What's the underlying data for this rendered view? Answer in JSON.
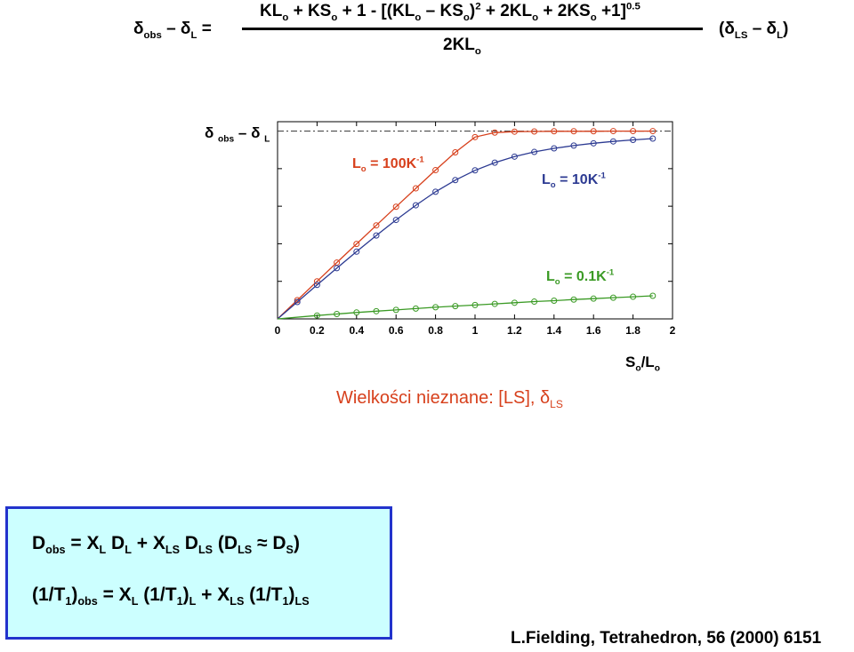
{
  "equation": {
    "lhs": [
      "δ",
      "obs",
      " – δ",
      "L",
      " ="
    ],
    "numerator": [
      "KL",
      "o",
      " + KS",
      "o",
      " + 1 - [(KL",
      "o",
      " – KS",
      "o",
      ")",
      "2",
      " + 2KL",
      "o",
      " + 2KS",
      "o",
      " +1]",
      "0.5"
    ],
    "denominator": [
      "2KL",
      "o"
    ],
    "rhs": [
      "(δ",
      "LS",
      " – δ",
      "L",
      ")"
    ]
  },
  "chart_data": {
    "type": "line",
    "ylabel": [
      "δ ",
      "obs",
      " – δ ",
      "L"
    ],
    "xlabel": [
      "S",
      "o",
      "/L",
      "o"
    ],
    "xlim": [
      0,
      2
    ],
    "ylim": [
      0,
      1.05
    ],
    "x_ticks": [
      "0",
      "0.2",
      "0.4",
      "0.6",
      "0.8",
      "1",
      "1.2",
      "1.4",
      "1.6",
      "1.8",
      "2"
    ],
    "asymptote": 1.0,
    "series": [
      {
        "name": [
          "L",
          "o",
          " = 100K",
          "-1"
        ],
        "color": "#d7401c",
        "x": [
          0.1,
          0.2,
          0.3,
          0.4,
          0.5,
          0.6,
          0.7,
          0.8,
          0.9,
          1.0,
          1.1,
          1.2,
          1.3,
          1.4,
          1.5,
          1.6,
          1.7,
          1.8,
          1.9
        ],
        "y": [
          0.1,
          0.2,
          0.3,
          0.399,
          0.498,
          0.597,
          0.695,
          0.792,
          0.887,
          0.968,
          0.992,
          0.997,
          0.998,
          0.999,
          0.999,
          0.999,
          1.0,
          1.0,
          1.0
        ]
      },
      {
        "name": [
          "L",
          "o",
          " = 10K",
          "-1"
        ],
        "color": "#2c3a92",
        "x": [
          0.1,
          0.2,
          0.3,
          0.4,
          0.5,
          0.6,
          0.7,
          0.8,
          0.9,
          1.0,
          1.1,
          1.2,
          1.3,
          1.4,
          1.5,
          1.6,
          1.7,
          1.8,
          1.9
        ],
        "y": [
          0.09,
          0.181,
          0.27,
          0.358,
          0.444,
          0.527,
          0.605,
          0.677,
          0.739,
          0.791,
          0.832,
          0.864,
          0.889,
          0.908,
          0.923,
          0.935,
          0.945,
          0.953,
          0.96
        ]
      },
      {
        "name": [
          "L",
          "o",
          " = 0.1K",
          "-1"
        ],
        "color": "#3a9a24",
        "x": [
          0.2,
          0.3,
          0.4,
          0.5,
          0.6,
          0.7,
          0.8,
          0.9,
          1.0,
          1.1,
          1.2,
          1.3,
          1.4,
          1.5,
          1.6,
          1.7,
          1.8,
          1.9
        ],
        "y": [
          0.018,
          0.026,
          0.034,
          0.041,
          0.048,
          0.055,
          0.062,
          0.068,
          0.074,
          0.08,
          0.086,
          0.092,
          0.097,
          0.103,
          0.108,
          0.113,
          0.118,
          0.123
        ]
      }
    ]
  },
  "unknowns_text": [
    "Wielkości nieznane: [LS], δ",
    "LS"
  ],
  "box": {
    "line1": [
      "D",
      "obs",
      " = X",
      "L",
      " D",
      "L",
      " + X",
      "LS",
      " D",
      "LS",
      "  (D",
      "LS",
      " ≈ D",
      "S",
      ")"
    ],
    "line2": [
      "(1/T",
      "1",
      ")",
      "obs",
      " = X",
      "L",
      " (1/T",
      "1",
      ")",
      "L",
      " + X",
      "LS",
      " (1/T",
      "1",
      ")",
      "LS"
    ]
  },
  "citation": "L.Fielding, Tetrahedron, 56 (2000) 6151"
}
